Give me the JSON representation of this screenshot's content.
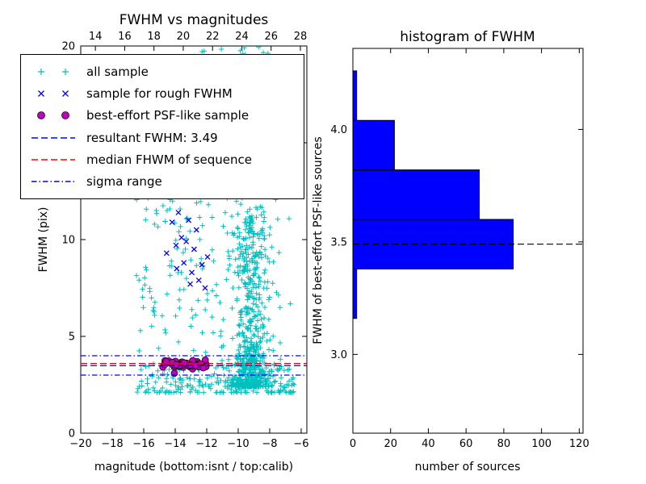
{
  "colors": {
    "background": "#ffffff",
    "axes": "#000000",
    "all_sample": "#00bfbf",
    "rough_fwhm_sample": "#0000ff",
    "psf_like_sample": "#bf00bf",
    "resultant_line": "#0000ff",
    "median_line": "#ff0000",
    "sigma_line": "#0000ff",
    "histogram_bar": "#0000ff"
  },
  "chart_data": [
    {
      "type": "scatter",
      "title": "FWHM vs magnitudes",
      "xlabel": "magnitude (bottom:isnt / top:calib)",
      "ylabel": "FWHM (pix)",
      "xlim": [
        -20,
        -5.64
      ],
      "ylim": [
        0,
        20
      ],
      "grid": false,
      "xticks": {
        "values": [
          -20,
          -18,
          -16,
          -14,
          -12,
          -10,
          -8,
          -6
        ],
        "labels": [
          "−20",
          "−18",
          "−16",
          "−14",
          "−12",
          "−10",
          "−8",
          "−6"
        ]
      },
      "top_axis": {
        "lim": [
          13.0,
          28.44
        ],
        "values": [
          14,
          16,
          18,
          20,
          22,
          24,
          26,
          28
        ],
        "labels": [
          "14",
          "16",
          "18",
          "20",
          "22",
          "24",
          "26",
          "28"
        ]
      },
      "yticks": {
        "values": [
          0,
          5,
          10,
          15,
          20
        ],
        "labels": [
          "0",
          "5",
          "10",
          "15",
          "20"
        ]
      },
      "legend": {
        "position": "upper left",
        "entries": [
          {
            "label": "all sample",
            "handle": "scatter",
            "marker": "plus",
            "color": "#00bfbf"
          },
          {
            "label": "sample for rough FWHM",
            "handle": "scatter",
            "marker": "x",
            "color": "#0000ff"
          },
          {
            "label": "best-effort PSF-like sample",
            "handle": "scatter",
            "marker": "circle",
            "color": "#bf00bf"
          },
          {
            "label": "resultant FWHM: 3.49",
            "handle": "line",
            "style": "dashed",
            "color": "#0000ff"
          },
          {
            "label": "median FHWM of sequence",
            "handle": "line",
            "style": "dashed",
            "color": "#ff0000"
          },
          {
            "label": "sigma range",
            "handle": "line",
            "style": "dashdot",
            "color": "#0000ff"
          }
        ]
      },
      "hlines": [
        {
          "name": "resultant-fwhm",
          "y": 3.49,
          "color": "#0000ff",
          "style": "dashed"
        },
        {
          "name": "median-fwhm-of-sequence",
          "y": 3.6,
          "color": "#ff0000",
          "style": "dashed"
        },
        {
          "name": "sigma-range-upper",
          "y": 4.0,
          "color": "#0000ff",
          "style": "dashdot"
        },
        {
          "name": "sigma-range-lower",
          "y": 3.0,
          "color": "#0000ff",
          "style": "dashdot"
        }
      ],
      "resultant_fwhm": 3.49,
      "series": [
        {
          "name": "all sample",
          "marker": "plus",
          "color": "#00bfbf",
          "seed": 20,
          "clusters": [
            {
              "n": 620,
              "x": {
                "t": "norm",
                "m": -9.25,
                "s": 0.55,
                "lo": -11.2,
                "hi": -6.2
              },
              "y": {
                "t": "pow",
                "b": 2.4,
                "a": 9.0,
                "e": 2.6
              }
            },
            {
              "n": 90,
              "x": {
                "t": "norm",
                "m": -9.3,
                "s": 0.6,
                "lo": -11.0,
                "hi": -6.5
              },
              "y": {
                "t": "uni",
                "lo": 8.0,
                "hi": 15.5
              }
            },
            {
              "n": 230,
              "x": {
                "t": "uni",
                "lo": -16.6,
                "hi": -6.4
              },
              "y": {
                "t": "pow",
                "b": 2.1,
                "a": 11.5,
                "e": 3.0
              }
            },
            {
              "n": 70,
              "x": {
                "t": "uni",
                "lo": -16.1,
                "hi": -11.3
              },
              "y": {
                "t": "uni",
                "lo": 5.5,
                "hi": 14.5
              }
            },
            {
              "n": 18,
              "x": {
                "t": "norm",
                "m": -10.3,
                "s": 1.2,
                "lo": -13.0,
                "hi": -7.5
              },
              "y": {
                "t": "uni",
                "lo": 18.2,
                "hi": 20.0
              }
            },
            {
              "n": 25,
              "x": {
                "t": "norm",
                "m": -12.55,
                "s": 0.25,
                "lo": -13.2,
                "hi": -12.0
              },
              "y": {
                "t": "uni",
                "lo": 11.0,
                "hi": 20.0
              }
            },
            {
              "n": 80,
              "x": {
                "t": "uni",
                "lo": -15.5,
                "hi": -6.5
              },
              "y": {
                "t": "uni",
                "lo": 2.4,
                "hi": 3.6
              }
            }
          ]
        },
        {
          "name": "sample for rough FWHM",
          "marker": "x",
          "color": "#0000ff",
          "points": [
            [
              -14.55,
              9.3
            ],
            [
              -14.2,
              10.9
            ],
            [
              -13.95,
              9.7
            ],
            [
              -13.8,
              11.4
            ],
            [
              -13.6,
              10.1
            ],
            [
              -13.45,
              8.8
            ],
            [
              -13.3,
              9.9
            ],
            [
              -13.15,
              11.0
            ],
            [
              -12.95,
              8.3
            ],
            [
              -12.8,
              9.5
            ],
            [
              -12.65,
              10.5
            ],
            [
              -12.5,
              7.9
            ],
            [
              -12.3,
              8.7
            ],
            [
              -12.1,
              7.5
            ],
            [
              -11.95,
              9.1
            ],
            [
              -13.05,
              7.7
            ],
            [
              -13.9,
              8.5
            ]
          ]
        },
        {
          "name": "best-effort PSF-like sample",
          "marker": "circle",
          "color": "#bf00bf",
          "edge_color": "#111111",
          "seed": 7,
          "clusters": [
            {
              "n": 55,
              "x": {
                "t": "norm",
                "m": -13.5,
                "s": 0.75,
                "lo": -15.3,
                "hi": -12.05
              },
              "y": {
                "t": "norm",
                "m": 3.56,
                "s": 0.12,
                "lo": 3.28,
                "hi": 3.95
              }
            }
          ],
          "points": [
            [
              -14.05,
              3.1
            ]
          ]
        }
      ]
    },
    {
      "type": "bar",
      "orientation": "horizontal",
      "title": "histogram of FWHM",
      "xlabel": "number of sources",
      "ylabel": "FWHM of best-effort PSF-like sources",
      "xlim": [
        0,
        122
      ],
      "ylim": [
        2.65,
        4.36
      ],
      "grid": false,
      "xticks": {
        "values": [
          0,
          20,
          40,
          60,
          80,
          100,
          120
        ],
        "labels": [
          "0",
          "20",
          "40",
          "60",
          "80",
          "100",
          "120"
        ]
      },
      "yticks": {
        "values": [
          3.0,
          3.5,
          4.0
        ],
        "labels": [
          "3.0",
          "3.5",
          "4.0"
        ]
      },
      "bar_color": "#0000ff",
      "bar_edge_color": "#000000",
      "bin_edges": [
        3.16,
        3.38,
        3.6,
        3.82,
        4.04,
        4.26
      ],
      "counts": [
        2,
        85,
        67,
        22,
        2
      ],
      "dashed_line": {
        "y": 3.49,
        "color": "#000000",
        "style": "dashed"
      }
    }
  ]
}
